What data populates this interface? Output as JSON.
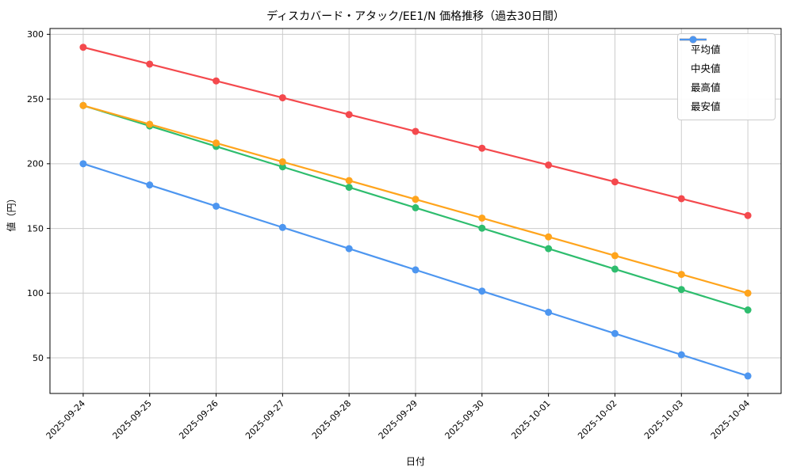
{
  "title": "ディスカバード・アタック/EE1/N 価格推移（過去30日間）",
  "axes": {
    "x_label": "日付",
    "y_label": "値（円）",
    "y_ticks": [
      50,
      100,
      150,
      200,
      250,
      300
    ],
    "x_tick_labels": [
      "2025-09-24",
      "2025-09-25",
      "2025-09-26",
      "2025-09-27",
      "2025-09-28",
      "2025-09-29",
      "2025-09-30",
      "2025-10-01",
      "2025-10-02",
      "2025-10-03",
      "2025-10-04"
    ]
  },
  "colors": {
    "grid": "#cccccc",
    "spine": "#000000",
    "background": "#ffffff",
    "average": "#2ebd6e",
    "median": "#ffa41c",
    "max": "#f4494d",
    "min": "#4d96f0"
  },
  "chart_data": {
    "type": "line",
    "title": "ディスカバード・アタック/EE1/N 価格推移（過去30日間）",
    "xlabel": "日付",
    "ylabel": "値（円）",
    "categories": [
      "2025-09-24",
      "2025-09-25",
      "2025-09-26",
      "2025-09-27",
      "2025-09-28",
      "2025-09-29",
      "2025-09-30",
      "2025-10-01",
      "2025-10-02",
      "2025-10-03",
      "2025-10-04"
    ],
    "series": [
      {
        "id": "average",
        "name": "平均値",
        "color": "#2ebd6e",
        "values": [
          245,
          229.2,
          213.4,
          197.6,
          181.8,
          166.0,
          150.2,
          134.4,
          118.6,
          102.8,
          87
        ]
      },
      {
        "id": "median",
        "name": "中央値",
        "color": "#ffa41c",
        "values": [
          245,
          230.5,
          216,
          201.5,
          187,
          172.5,
          158,
          143.5,
          129,
          114.5,
          100
        ]
      },
      {
        "id": "max",
        "name": "最高値",
        "color": "#f4494d",
        "values": [
          290,
          277,
          264,
          251,
          238,
          225,
          212,
          199,
          186,
          173,
          160
        ]
      },
      {
        "id": "min",
        "name": "最安値",
        "color": "#4d96f0",
        "values": [
          200,
          183.6,
          167.2,
          150.8,
          134.4,
          118.0,
          101.6,
          85.2,
          68.8,
          52.4,
          36
        ]
      }
    ],
    "ylim": [
      22.5,
      304.5
    ],
    "x_margin": 0.5,
    "grid": true,
    "legend_position": "upper right"
  }
}
